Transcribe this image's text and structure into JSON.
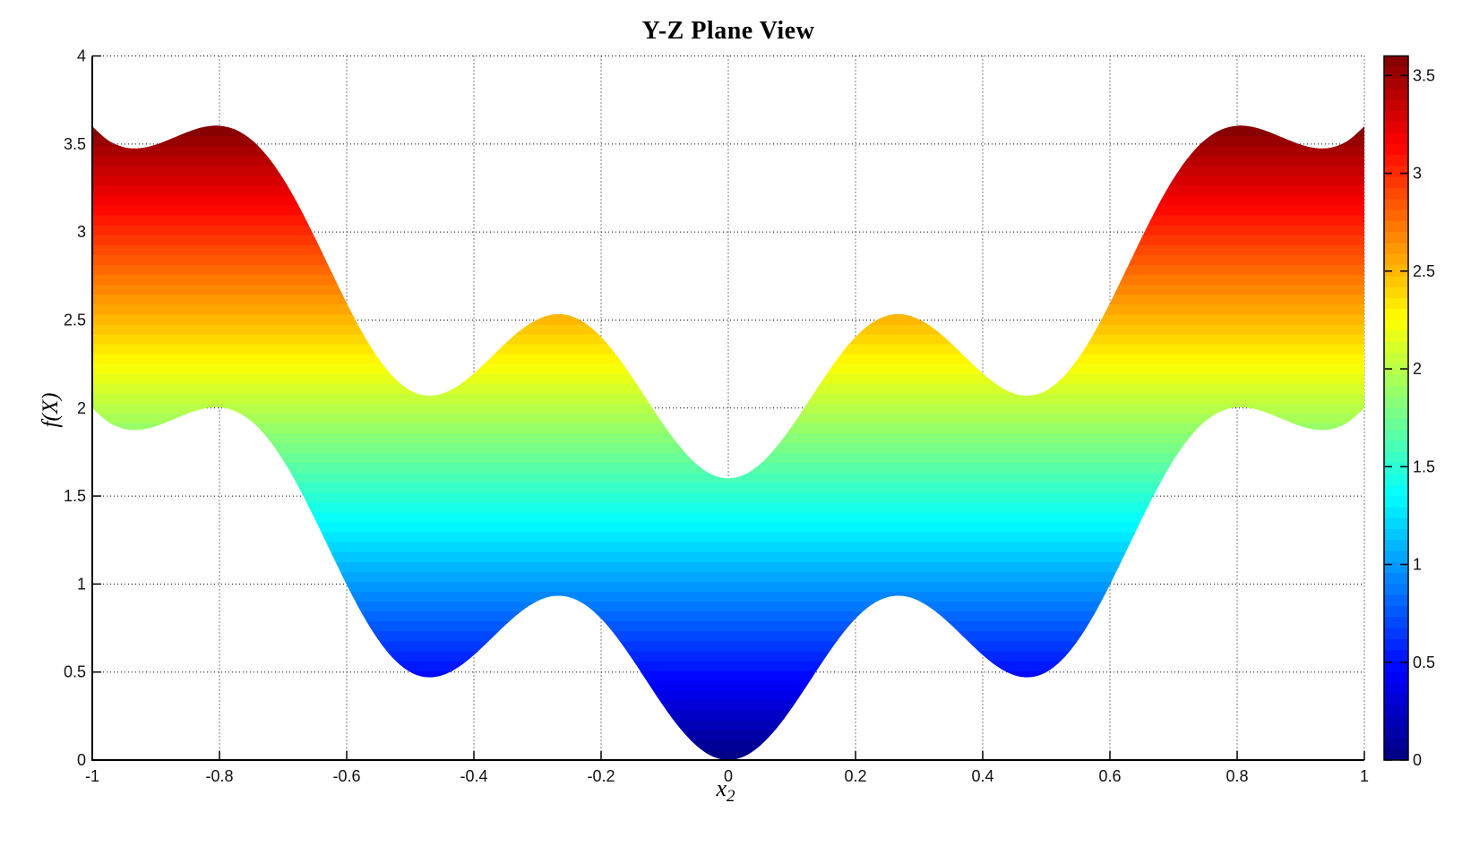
{
  "figure": {
    "background": "#FFFFFF"
  },
  "chart_data": {
    "type": "area",
    "title": "Y-Z Plane View",
    "xlabel_base": "x",
    "xlabel_sub": "2",
    "ylabel": "f(X)",
    "xlim": [
      -1,
      1
    ],
    "ylim": [
      0,
      4
    ],
    "x_ticks": [
      -1,
      -0.8,
      -0.6,
      -0.4,
      -0.2,
      0,
      0.2,
      0.4,
      0.6,
      0.8,
      1
    ],
    "x_tick_labels": [
      "-1",
      "-0.8",
      "-0.6",
      "-0.4",
      "-0.2",
      "0",
      "0.2",
      "0.4",
      "0.6",
      "0.8",
      "1"
    ],
    "y_ticks": [
      0,
      0.5,
      1,
      1.5,
      2,
      2.5,
      3,
      3.5,
      4
    ],
    "y_tick_labels": [
      "0",
      "0.5",
      "1",
      "1.5",
      "2",
      "2.5",
      "3",
      "3.5",
      "4"
    ],
    "grid": "dotted",
    "legend": "none",
    "colormap": "jet",
    "jet_anchors": [
      {
        "pos": 0.0,
        "color": "#000080"
      },
      {
        "pos": 0.125,
        "color": "#0000FF"
      },
      {
        "pos": 0.375,
        "color": "#00FFFF"
      },
      {
        "pos": 0.625,
        "color": "#FFFF00"
      },
      {
        "pos": 0.875,
        "color": "#FF0000"
      },
      {
        "pos": 1.0,
        "color": "#800000"
      }
    ],
    "colorbar": {
      "min": 0,
      "max": 3.6,
      "ticks": [
        0,
        0.5,
        1,
        1.5,
        2,
        2.5,
        3,
        3.5
      ],
      "tick_labels": [
        "0",
        "0.5",
        "1",
        "1.5",
        "2",
        "2.5",
        "3",
        "3.5"
      ]
    },
    "band": {
      "x": [
        -1,
        -0.975,
        -0.95,
        -0.925,
        -0.9,
        -0.875,
        -0.85,
        -0.825,
        -0.8,
        -0.775,
        -0.75,
        -0.725,
        -0.7,
        -0.675,
        -0.65,
        -0.625,
        -0.6,
        -0.575,
        -0.55,
        -0.525,
        -0.5,
        -0.475,
        -0.45,
        -0.425,
        -0.4,
        -0.375,
        -0.35,
        -0.325,
        -0.3,
        -0.275,
        -0.25,
        -0.225,
        -0.2,
        -0.175,
        -0.15,
        -0.125,
        -0.1,
        -0.075,
        -0.05,
        -0.025,
        0,
        0.025,
        0.05,
        0.075,
        0.1,
        0.125,
        0.15,
        0.175,
        0.2,
        0.225,
        0.25,
        0.275,
        0.3,
        0.325,
        0.35,
        0.375,
        0.4,
        0.425,
        0.45,
        0.475,
        0.5,
        0.525,
        0.55,
        0.575,
        0.6,
        0.625,
        0.65,
        0.675,
        0.7,
        0.725,
        0.75,
        0.775,
        0.8,
        0.825,
        0.85,
        0.875,
        0.9,
        0.925,
        0.95,
        0.975,
        1
      ],
      "lower": [
        2.0,
        1.9208,
        1.8814,
        1.8761,
        1.8964,
        1.9313,
        1.9686,
        1.9964,
        2.0036,
        1.9817,
        1.925,
        1.8317,
        1.7036,
        1.5464,
        1.3686,
        1.1813,
        0.9964,
        0.8261,
        0.6814,
        0.5708,
        0.5,
        0.4708,
        0.4814,
        0.5261,
        0.5964,
        0.6813,
        0.7686,
        0.8464,
        0.9036,
        0.9317,
        0.925,
        0.8817,
        0.8036,
        0.6964,
        0.5686,
        0.4313,
        0.2964,
        0.1761,
        0.0814,
        0.0208,
        0.0,
        0.0208,
        0.0814,
        0.1761,
        0.2964,
        0.4313,
        0.5686,
        0.6964,
        0.8036,
        0.8817,
        0.925,
        0.9317,
        0.9036,
        0.8464,
        0.7686,
        0.6813,
        0.5964,
        0.5261,
        0.4814,
        0.4708,
        0.5,
        0.5708,
        0.6814,
        0.8261,
        0.9964,
        1.1813,
        1.3686,
        1.5464,
        1.7036,
        1.8317,
        1.925,
        1.9817,
        2.0036,
        1.9964,
        1.9686,
        1.9313,
        1.8964,
        1.8761,
        1.8814,
        1.9208,
        2.0
      ],
      "upper": [
        3.6,
        3.5208,
        3.4814,
        3.4761,
        3.4964,
        3.5313,
        3.5686,
        3.5964,
        3.6036,
        3.5817,
        3.525,
        3.4317,
        3.3036,
        3.1464,
        2.9686,
        2.7813,
        2.5964,
        2.4261,
        2.2814,
        2.1708,
        2.1,
        2.0708,
        2.0814,
        2.1261,
        2.1964,
        2.2813,
        2.3686,
        2.4464,
        2.5036,
        2.5317,
        2.525,
        2.4817,
        2.4036,
        2.2964,
        2.1686,
        2.0313,
        1.8964,
        1.7761,
        1.6814,
        1.6208,
        1.6,
        1.6208,
        1.6814,
        1.7761,
        1.8964,
        2.0313,
        2.1686,
        2.2964,
        2.4036,
        2.4817,
        2.525,
        2.5317,
        2.5036,
        2.4464,
        2.3686,
        2.2813,
        2.1964,
        2.1261,
        2.0814,
        2.0708,
        2.1,
        2.1708,
        2.2814,
        2.4261,
        2.5964,
        2.7813,
        2.9686,
        3.1464,
        3.3036,
        3.4317,
        3.525,
        3.5817,
        3.6036,
        3.5964,
        3.5686,
        3.5313,
        3.4964,
        3.4761,
        3.4814,
        3.5208,
        3.6
      ]
    }
  },
  "colors": {
    "axis": "#000000",
    "grid": "#000000",
    "text": "#111111",
    "band_bottom": "#000080",
    "band_top": "#800000"
  }
}
